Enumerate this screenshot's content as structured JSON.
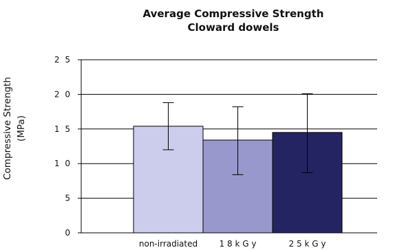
{
  "chart_data": {
    "type": "bar",
    "title_lines": [
      "Average Compressive Strength",
      "Cloward dowels"
    ],
    "ylabel_lines": [
      "Compressive Strength",
      "(MPa)"
    ],
    "xlabel": "",
    "categories": [
      "non-irradiated",
      "18 kGy",
      "25 kGy"
    ],
    "category_tick_labels": [
      "non-irradiated",
      "1 8  k G y",
      "2 5  k G y"
    ],
    "values": [
      15.4,
      13.4,
      14.5
    ],
    "error_low": [
      12.0,
      8.4,
      8.7
    ],
    "error_high": [
      18.8,
      18.2,
      20.1
    ],
    "bar_colors": [
      "#ccccec",
      "#9898cc",
      "#242463"
    ],
    "ylim": [
      0,
      25
    ],
    "yticks": [
      0,
      5,
      10,
      15,
      20,
      25
    ],
    "ytick_labels": [
      "0",
      "5",
      "1 0",
      "1 5",
      "2 0",
      "2 5"
    ],
    "grid": "horizontal",
    "legend": "none"
  }
}
